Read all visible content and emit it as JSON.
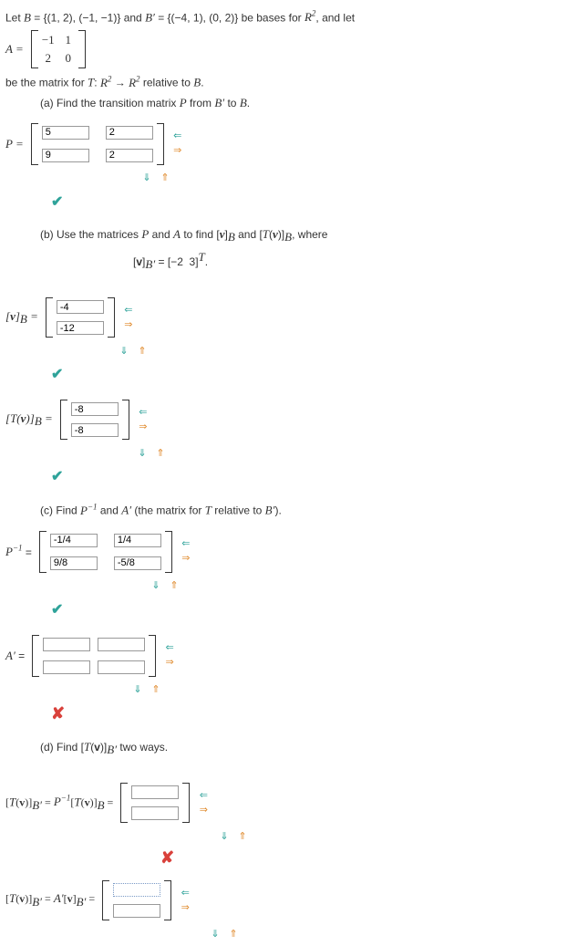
{
  "intro_line1_html": "Let <span class='math'>B</span> = {(1, 2), (−1, −1)} and <span class='math'>B′</span> = {(−4, 1), (0, 2)} be bases for <span class='math'>R<sup>2</sup></span>, and let",
  "A_label": "A =",
  "A_matrix": [
    [
      "−1",
      "1"
    ],
    [
      "2",
      "0"
    ]
  ],
  "intro_line2_html": "be the matrix for <span class='math'>T</span>: <span class='math'>R<sup>2</sup></span> → <span class='math'>R<sup>2</sup></span> relative to <span class='math'>B</span>.",
  "part_a_text_html": "(a) Find the transition matrix <span class='math'>P</span> from <span class='math'>B′</span> to <span class='math'>B</span>.",
  "P_label": "P =",
  "P_values": [
    [
      "5",
      "2"
    ],
    [
      "9",
      "2"
    ]
  ],
  "part_b_text_html": "(b) Use the matrices <span class='math'>P</span> and <span class='math'>A</span> to find [<span class='math'><b>v</b></span>]<sub><span class='math'>B</span></sub> and [<span class='math'>T</span>(<span class='math'><b>v</b></span>)]<sub><span class='math'>B</span></sub>, where",
  "vBprime_def_html": "[<b>v</b>]<sub><span class='math'>B′</span></sub> = [−2&nbsp;&nbsp;3]<sup><span class='math'>T</span></sup>.",
  "vB_label_html": "[<b>v</b>]<sub><span class='math'>B</span></sub> =",
  "vB_values": [
    "-4",
    "-12"
  ],
  "TvB_label_html": "[<span class='math'>T</span>(<b>v</b>)]<sub><span class='math'>B</span></sub> =",
  "TvB_values": [
    "-8",
    "-8"
  ],
  "part_c_text_html": "(c) Find <span class='math'>P<sup>−1</sup></span> and <span class='math'>A′</span> (the matrix for <span class='math'>T</span> relative to <span class='math'>B′</span>).",
  "Pinv_label_html": "<span class='math'>P<sup>−1</sup></span> =",
  "Pinv_values": [
    [
      "-1/4",
      "1/4"
    ],
    [
      "9/8",
      "-5/8"
    ]
  ],
  "Aprime_label_html": "<span class='math'>A′</span> =",
  "Aprime_values": [
    [
      "",
      ""
    ],
    [
      "",
      ""
    ]
  ],
  "part_d_text_html": "(d) Find [<span class='math'>T</span>(<b>v</b>)]<sub><span class='math'>B′</span></sub> two ways.",
  "d1_label_html": "[<span class='math'>T</span>(<b>v</b>)]<sub><span class='math'>B′</span></sub> = <span class='math'>P<sup>−1</sup></span>[<span class='math'>T</span>(<b>v</b>)]<sub><span class='math'>B</span></sub> =",
  "d1_values": [
    "",
    ""
  ],
  "d2_label_html": "[<span class='math'>T</span>(<b>v</b>)]<sub><span class='math'>B′</span></sub> = <span class='math'>A′</span>[<b>v</b>]<sub><span class='math'>B′</span></sub> =",
  "d2_values": [
    "",
    ""
  ],
  "colors": {
    "teal": "#2fa39a",
    "orange": "#e08a2c",
    "red": "#d9413b",
    "border": "#999999",
    "dotted": "#7a9ac6"
  }
}
